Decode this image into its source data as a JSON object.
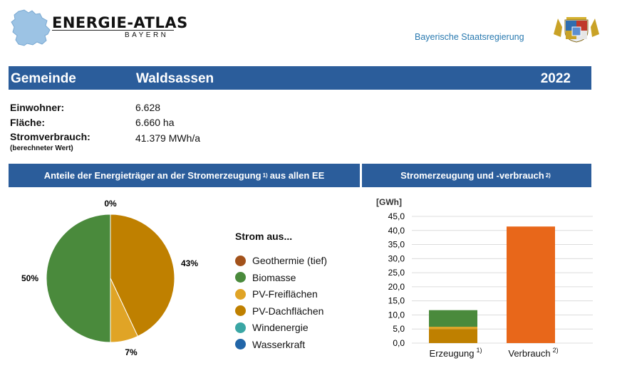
{
  "header": {
    "logo_title": "ENERGIE-ATLAS",
    "logo_subtitle": "BAYERN",
    "government_label": "Bayerische Staatsregierung"
  },
  "title_bar": {
    "label": "Gemeinde",
    "municipality": "Waldsassen",
    "year": "2022"
  },
  "info": {
    "residents_label": "Einwohner:",
    "residents_value": "6.628",
    "area_label": "Fläche:",
    "area_value": "6.660 ha",
    "consumption_label": "Stromverbrauch:",
    "consumption_value": "41.379 MWh/a",
    "consumption_note": "(berechneter Wert)"
  },
  "sections": {
    "pie_title": "Anteile der Energieträger an der Stromerzeugung",
    "pie_title_sup": "1)",
    "pie_title_suffix": "aus allen EE",
    "bar_title": "Stromerzeugung und -verbrauch",
    "bar_title_sup": "2)"
  },
  "legend": {
    "title": "Strom aus...",
    "items": [
      {
        "label": "Geothermie (tief)",
        "color": "#a3521b"
      },
      {
        "label": "Biomasse",
        "color": "#4a8a3c"
      },
      {
        "label": "PV-Freiflächen",
        "color": "#e0a426"
      },
      {
        "label": "PV-Dachflächen",
        "color": "#bf8000"
      },
      {
        "label": "Windenergie",
        "color": "#3aa6a4"
      },
      {
        "label": "Wasserkraft",
        "color": "#2266a8"
      }
    ]
  },
  "chart_data": [
    {
      "type": "pie",
      "slices": [
        {
          "name": "PV-Dachflächen",
          "value": 43,
          "label": "43%",
          "color": "#bf8000"
        },
        {
          "name": "PV-Freiflächen",
          "value": 7,
          "label": "7%",
          "color": "#e0a426"
        },
        {
          "name": "Biomasse",
          "value": 50,
          "label": "50%",
          "color": "#4a8a3c"
        },
        {
          "name": "Wasserkraft",
          "value": 0,
          "label": "0%",
          "color": "#2266a8"
        }
      ]
    },
    {
      "type": "bar",
      "ylabel": "[GWh]",
      "ylim": [
        0,
        45
      ],
      "yticks": [
        "0,0",
        "5,0",
        "10,0",
        "15,0",
        "20,0",
        "25,0",
        "30,0",
        "35,0",
        "40,0",
        "45,0"
      ],
      "categories": [
        "Erzeugung",
        "Verbrauch"
      ],
      "category_sups": [
        "1)",
        "2)"
      ],
      "stacks": [
        [
          {
            "name": "PV-Dachflächen",
            "value": 5.0,
            "color": "#bf8000"
          },
          {
            "name": "PV-Freiflächen",
            "value": 0.8,
            "color": "#e0a426"
          },
          {
            "name": "Biomasse",
            "value": 5.9,
            "color": "#4a8a3c"
          }
        ],
        [
          {
            "name": "Verbrauch",
            "value": 41.4,
            "color": "#e8671a"
          }
        ]
      ]
    }
  ]
}
